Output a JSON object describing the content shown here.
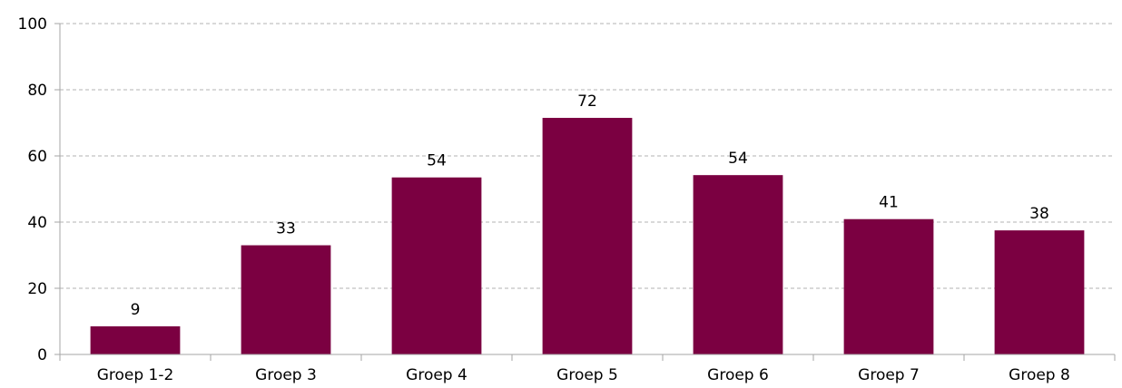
{
  "chart_data": {
    "type": "bar",
    "title": "",
    "xlabel": "",
    "ylabel": "",
    "categories": [
      "Groep 1-2",
      "Groep 3",
      "Groep 4",
      "Groep 5",
      "Groep 6",
      "Groep 7",
      "Groep 8"
    ],
    "values": [
      8.5,
      33,
      53.5,
      71.5,
      54.2,
      40.9,
      37.5
    ],
    "data_labels": [
      "9",
      "33",
      "54",
      "72",
      "54",
      "41",
      "38"
    ],
    "ylim": [
      0,
      100
    ],
    "yticks": [
      "0",
      "20",
      "40",
      "60",
      "80",
      "100"
    ],
    "grid": true,
    "legend": "none",
    "bar_color": "#7b0041",
    "grid_color": "#b3b3b3",
    "axis_color": "#a6a6a6"
  }
}
